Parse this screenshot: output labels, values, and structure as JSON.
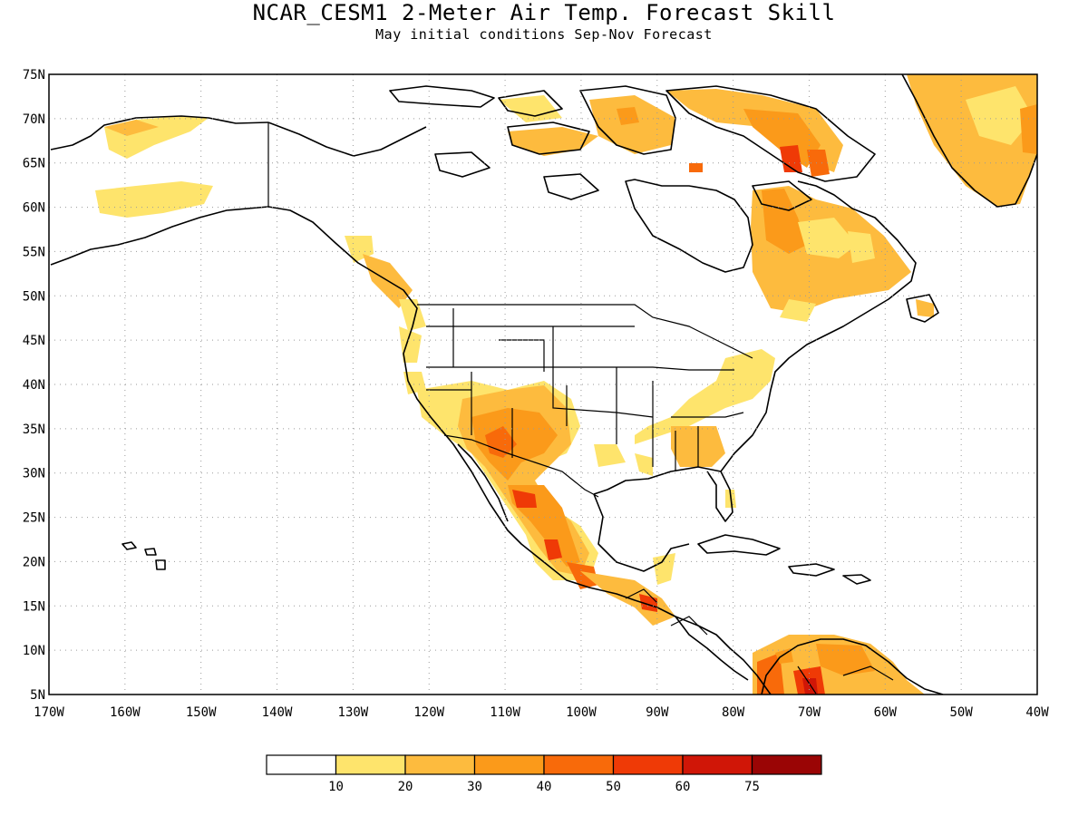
{
  "header": {
    "title": "NCAR_CESM1 2-Meter Air Temp. Forecast Skill",
    "subtitle": "May initial conditions  Sep-Nov Forecast"
  },
  "map": {
    "region": "North America",
    "lon_range": [
      -170,
      -40
    ],
    "lat_range": [
      5,
      75
    ],
    "gridlines": "dotted",
    "lat_labels": [
      "75N",
      "70N",
      "65N",
      "60N",
      "55N",
      "50N",
      "45N",
      "40N",
      "35N",
      "30N",
      "25N",
      "20N",
      "15N",
      "10N",
      "5N"
    ],
    "lon_labels": [
      "170W",
      "160W",
      "150W",
      "140W",
      "130W",
      "120W",
      "110W",
      "100W",
      "90W",
      "80W",
      "70W",
      "60W",
      "50W",
      "40W"
    ]
  },
  "colorbar": {
    "colors": [
      "#ffffff",
      "#fee46c",
      "#fdbb3e",
      "#fb9a1a",
      "#f86a0a",
      "#ef3a06",
      "#d01607",
      "#9a0505"
    ],
    "labels": [
      "10",
      "20",
      "30",
      "40",
      "50",
      "60",
      "75"
    ]
  },
  "colors": {
    "coast": "#000000",
    "grid": "#9a9a9a"
  }
}
